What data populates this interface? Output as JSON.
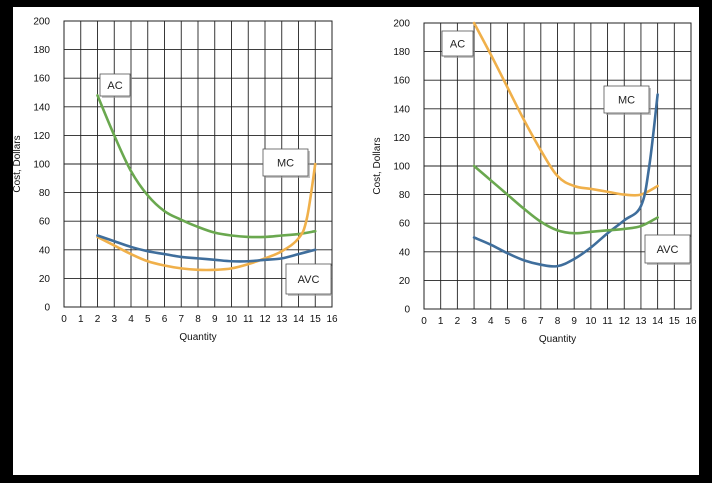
{
  "chart_data": [
    {
      "type": "line",
      "xlabel": "Quantity",
      "ylabel": "Cost, Dollars",
      "xlim": [
        0,
        16
      ],
      "ylim": [
        0,
        200
      ],
      "xticks": [
        0,
        1,
        2,
        3,
        4,
        5,
        6,
        7,
        8,
        9,
        10,
        11,
        12,
        13,
        14,
        15,
        16
      ],
      "yticks": [
        0,
        20,
        40,
        60,
        80,
        100,
        120,
        140,
        160,
        180,
        200
      ],
      "grid": true,
      "series": [
        {
          "name": "AC",
          "color": "#6aa84f",
          "x": [
            2,
            3,
            4,
            5,
            6,
            7,
            8,
            9,
            10,
            11,
            12,
            13,
            14,
            15
          ],
          "y": [
            148,
            120,
            95,
            78,
            67,
            61,
            56,
            52,
            50,
            49,
            49,
            50,
            51,
            53
          ]
        },
        {
          "name": "MC",
          "color": "#f0b04a",
          "x": [
            2,
            3,
            4,
            5,
            6,
            7,
            8,
            9,
            10,
            11,
            12,
            13,
            14,
            14.5,
            15
          ],
          "y": [
            49,
            43,
            37,
            32,
            29,
            27,
            26,
            26,
            27,
            30,
            34,
            39,
            48,
            62,
            100
          ]
        },
        {
          "name": "AVC",
          "color": "#3f6e9c",
          "x": [
            2,
            3,
            4,
            5,
            6,
            7,
            8,
            9,
            10,
            11,
            12,
            13,
            14,
            15
          ],
          "y": [
            50,
            46,
            42,
            39,
            37,
            35,
            34,
            33,
            32,
            32,
            33,
            34,
            37,
            40
          ]
        }
      ],
      "labels": [
        {
          "text": "AC",
          "box": "upper-left"
        },
        {
          "text": "MC",
          "box": "right-middle"
        },
        {
          "text": "AVC",
          "box": "lower-right"
        }
      ]
    },
    {
      "type": "line",
      "xlabel": "Quantity",
      "ylabel": "Cost, Dollars",
      "xlim": [
        0,
        16
      ],
      "ylim": [
        0,
        200
      ],
      "xticks": [
        0,
        1,
        2,
        3,
        4,
        5,
        6,
        7,
        8,
        9,
        10,
        11,
        12,
        13,
        14,
        15,
        16
      ],
      "yticks": [
        0,
        20,
        40,
        60,
        80,
        100,
        120,
        140,
        160,
        180,
        200
      ],
      "grid": true,
      "series": [
        {
          "name": "AC",
          "color": "#f0b04a",
          "x": [
            3,
            4,
            5,
            6,
            7,
            8,
            9,
            10,
            11,
            12,
            13,
            14
          ],
          "y": [
            200,
            178,
            155,
            132,
            111,
            93,
            86,
            84,
            82,
            80,
            80,
            86
          ]
        },
        {
          "name": "MC",
          "color": "#3f6e9c",
          "x": [
            3,
            4,
            5,
            6,
            7,
            8,
            9,
            10,
            11,
            12,
            13,
            13.5,
            14
          ],
          "y": [
            50,
            45,
            39,
            34,
            31,
            30,
            35,
            43,
            53,
            62,
            72,
            100,
            150
          ]
        },
        {
          "name": "AVC",
          "color": "#6aa84f",
          "x": [
            3,
            4,
            5,
            6,
            7,
            8,
            9,
            10,
            11,
            12,
            13,
            14
          ],
          "y": [
            100,
            90,
            80,
            70,
            61,
            55,
            53,
            54,
            55,
            56,
            58,
            64
          ]
        }
      ],
      "labels": [
        {
          "text": "AC",
          "box": "top-left"
        },
        {
          "text": "MC",
          "box": "upper-right"
        },
        {
          "text": "AVC",
          "box": "right-middle"
        }
      ]
    }
  ]
}
